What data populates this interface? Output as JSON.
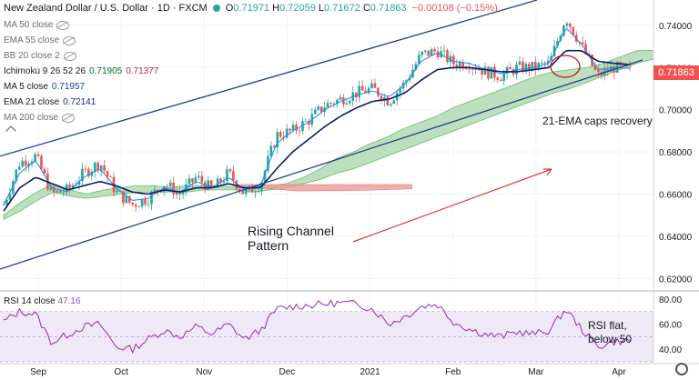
{
  "header": {
    "title": "New Zealand Dollar / U.S. Dollar · 1D · FXCM",
    "open": "0.71971",
    "high": "0.72059",
    "low": "0.71672",
    "close": "0.71863",
    "change": "−0.00108 (−0.15%)"
  },
  "indicators": [
    {
      "label": "MA 50 close",
      "hidden": true,
      "values": []
    },
    {
      "label": "EMA 55 close",
      "hidden": true,
      "values": []
    },
    {
      "label": "BB 20 close 2",
      "hidden": true,
      "values": []
    },
    {
      "label": "Ichimoku 9 26 52 26",
      "hidden": false,
      "values": [
        "0.71905",
        "0.71377"
      ]
    },
    {
      "label": "MA 5 close",
      "hidden": false,
      "values": [
        "0.71957"
      ]
    },
    {
      "label": "EMA 21 close",
      "hidden": false,
      "values": [
        "0.72141"
      ]
    },
    {
      "label": "MA 200 close",
      "hidden": true,
      "values": []
    }
  ],
  "price_tag": "0.71863",
  "rsi": {
    "label": "RSI 14 close",
    "value": "47.16"
  },
  "annotations": {
    "ema_caps": "21-EMA caps recovery",
    "channel_line1": "Rising Channel",
    "channel_line2": "Pattern",
    "rsi_line1": "RSI flat,",
    "rsi_line2": "below 50"
  },
  "colors": {
    "up": "#26a69a",
    "down": "#ef5350",
    "ma5": "#1e88e5",
    "ema21": "#0d1b6b",
    "channel": "#1f3c88",
    "cloud_bull": "#a5d6a7",
    "cloud_bear": "#ef9a9a",
    "rsi": "#9c27b0",
    "rsi_band": "#ede7f6"
  },
  "chart_data": {
    "type": "candlestick",
    "title": "New Zealand Dollar / U.S. Dollar · 1D · FXCM",
    "price_axis": {
      "ticks": [
        "0.74000",
        "0.72000",
        "0.70000",
        "0.68000",
        "0.66000",
        "0.64000",
        "0.62000"
      ],
      "range": [
        0.615,
        0.752
      ]
    },
    "time_axis": {
      "ticks": [
        "Sep",
        "Oct",
        "Nov",
        "Dec",
        "2021",
        "Feb",
        "Mar",
        "Apr"
      ]
    },
    "rsi_axis": {
      "ticks": [
        "80.00",
        "60.00",
        "40.00"
      ],
      "range": [
        30,
        85
      ],
      "band": [
        30,
        70
      ]
    },
    "price_path": [
      0.655,
      0.675,
      0.678,
      0.66,
      0.662,
      0.67,
      0.675,
      0.661,
      0.655,
      0.658,
      0.665,
      0.66,
      0.668,
      0.662,
      0.67,
      0.66,
      0.665,
      0.688,
      0.69,
      0.695,
      0.702,
      0.705,
      0.708,
      0.71,
      0.704,
      0.713,
      0.726,
      0.728,
      0.722,
      0.722,
      0.718,
      0.716,
      0.72,
      0.72,
      0.722,
      0.744,
      0.73,
      0.716,
      0.72,
      0.7186
    ],
    "ma5_path": [
      0.655,
      0.67,
      0.676,
      0.663,
      0.661,
      0.668,
      0.672,
      0.663,
      0.657,
      0.658,
      0.663,
      0.661,
      0.666,
      0.663,
      0.668,
      0.662,
      0.664,
      0.684,
      0.69,
      0.694,
      0.7,
      0.704,
      0.707,
      0.709,
      0.706,
      0.712,
      0.723,
      0.727,
      0.723,
      0.722,
      0.719,
      0.717,
      0.719,
      0.72,
      0.722,
      0.739,
      0.731,
      0.719,
      0.72,
      0.7196
    ],
    "ema21_path": [
      0.652,
      0.663,
      0.668,
      0.665,
      0.662,
      0.664,
      0.666,
      0.664,
      0.661,
      0.66,
      0.662,
      0.661,
      0.663,
      0.663,
      0.665,
      0.663,
      0.663,
      0.672,
      0.68,
      0.686,
      0.692,
      0.697,
      0.701,
      0.704,
      0.705,
      0.708,
      0.714,
      0.719,
      0.72,
      0.72,
      0.719,
      0.718,
      0.718,
      0.719,
      0.72,
      0.728,
      0.728,
      0.723,
      0.722,
      0.7214
    ],
    "cloud_upper": [
      0.65,
      0.656,
      0.661,
      0.665,
      0.662,
      0.66,
      0.662,
      0.663,
      0.664,
      0.664,
      0.663,
      0.664,
      0.664,
      0.664,
      0.663,
      0.663,
      0.664,
      0.665,
      0.668,
      0.672,
      0.677,
      0.68,
      0.684,
      0.687,
      0.691,
      0.694,
      0.697,
      0.701,
      0.704,
      0.707,
      0.71,
      0.713,
      0.716,
      0.718,
      0.719,
      0.72,
      0.722,
      0.725,
      0.728,
      0.728
    ],
    "cloud_lower": [
      0.648,
      0.652,
      0.657,
      0.661,
      0.659,
      0.658,
      0.659,
      0.66,
      0.661,
      0.661,
      0.661,
      0.661,
      0.662,
      0.662,
      0.662,
      0.661,
      0.662,
      0.663,
      0.665,
      0.667,
      0.67,
      0.672,
      0.675,
      0.678,
      0.681,
      0.684,
      0.687,
      0.69,
      0.693,
      0.696,
      0.699,
      0.702,
      0.705,
      0.708,
      0.71,
      0.713,
      0.716,
      0.719,
      0.722,
      0.724
    ],
    "rsi_path": [
      62,
      70,
      68,
      45,
      52,
      58,
      60,
      42,
      40,
      48,
      55,
      50,
      58,
      52,
      60,
      48,
      55,
      72,
      74,
      75,
      76,
      77,
      76,
      72,
      60,
      66,
      74,
      76,
      62,
      56,
      52,
      50,
      54,
      52,
      55,
      72,
      56,
      42,
      46,
      47
    ],
    "channel_upper": [
      [
        0,
        0.678
      ],
      [
        1,
        0.752
      ]
    ],
    "channel_lower": [
      [
        0,
        0.629
      ],
      [
        1,
        0.726
      ]
    ]
  }
}
